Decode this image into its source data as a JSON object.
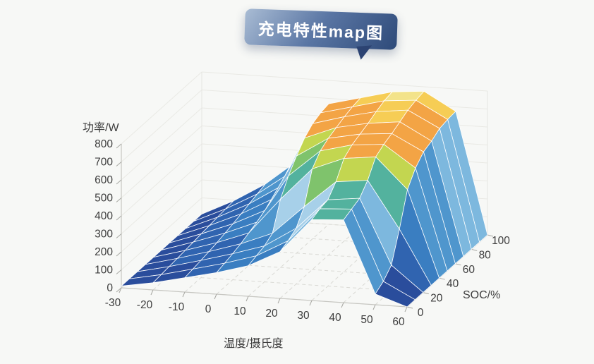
{
  "page": {
    "background": "#f7f8f6",
    "text_color": "#3d3d3d"
  },
  "title_bubble": {
    "label": "充电特性map图",
    "gradient_start": "#a9bcd4",
    "gradient_mid": "#5a76a4",
    "gradient_end": "#2e4a79"
  },
  "chart_data": {
    "type": "surface",
    "title": "充电特性map图",
    "xlabel": "温度/摄氏度",
    "ylabel": "SOC/%",
    "zlabel": "功率/W",
    "x": [
      -30,
      -20,
      -10,
      0,
      10,
      20,
      30,
      40,
      50,
      60
    ],
    "x_ticks": [
      -30,
      -20,
      -10,
      0,
      10,
      20,
      30,
      40,
      50,
      60
    ],
    "y_levels": [
      0,
      10,
      20,
      30,
      40,
      50,
      60,
      70,
      80,
      90,
      100
    ],
    "y_ticks": [
      0,
      20,
      40,
      60,
      80,
      100
    ],
    "z_ticks": [
      0,
      100,
      200,
      300,
      400,
      500,
      600,
      700,
      800
    ],
    "zlim": [
      0,
      800
    ],
    "grid": true,
    "z_values": [
      [
        10,
        40,
        80,
        120,
        170,
        260,
        450,
        460,
        60,
        0
      ],
      [
        10,
        45,
        88,
        132,
        185,
        280,
        470,
        480,
        90,
        0
      ],
      [
        10,
        50,
        96,
        145,
        200,
        310,
        480,
        500,
        140,
        0
      ],
      [
        10,
        55,
        105,
        160,
        230,
        390,
        540,
        560,
        300,
        0
      ],
      [
        10,
        60,
        115,
        180,
        380,
        560,
        630,
        650,
        480,
        0
      ],
      [
        10,
        66,
        128,
        200,
        470,
        620,
        665,
        680,
        560,
        0
      ],
      [
        10,
        72,
        140,
        225,
        540,
        650,
        685,
        700,
        610,
        0
      ],
      [
        10,
        78,
        155,
        250,
        600,
        670,
        705,
        725,
        630,
        0
      ],
      [
        10,
        84,
        170,
        280,
        640,
        690,
        730,
        750,
        660,
        0
      ],
      [
        10,
        90,
        185,
        310,
        660,
        705,
        750,
        765,
        670,
        0
      ],
      [
        10,
        95,
        200,
        340,
        670,
        715,
        760,
        775,
        675,
        0
      ]
    ],
    "colormap": [
      {
        "max": 70,
        "color": "#2a4d9c"
      },
      {
        "max": 150,
        "color": "#3064b0"
      },
      {
        "max": 230,
        "color": "#3a7ec1"
      },
      {
        "max": 310,
        "color": "#4f96cd"
      },
      {
        "max": 380,
        "color": "#7db8de"
      },
      {
        "max": 450,
        "color": "#a7d0e9"
      },
      {
        "max": 522,
        "color": "#53b29e"
      },
      {
        "max": 585,
        "color": "#7fc36c"
      },
      {
        "max": 625,
        "color": "#c3d650"
      },
      {
        "max": 720,
        "color": "#f3a445"
      },
      {
        "max": 762,
        "color": "#f6cd55"
      },
      {
        "max": 9999,
        "color": "#f3e38a"
      }
    ]
  }
}
